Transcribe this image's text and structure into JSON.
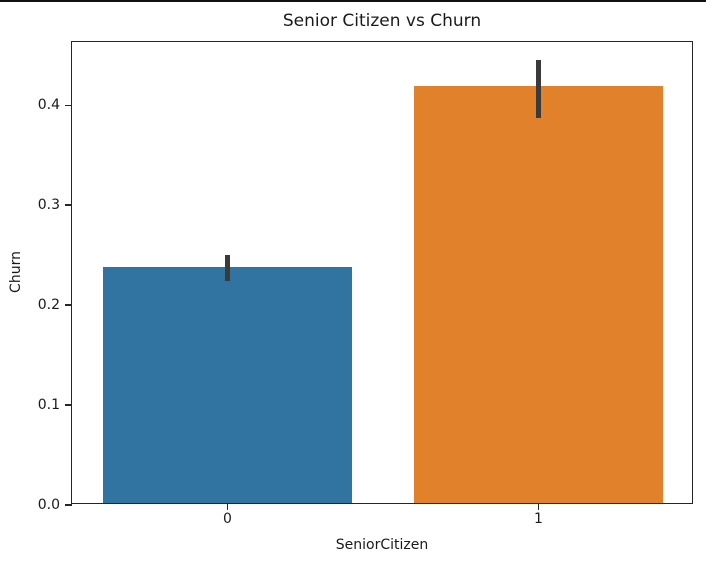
{
  "figure": {
    "background": "#ffffff",
    "top_border_color": "#111111"
  },
  "chart_data": {
    "type": "bar",
    "title": "Senior Citizen vs Churn",
    "xlabel": "SeniorCitizen",
    "ylabel": "Churn",
    "categories": [
      "0",
      "1"
    ],
    "values": [
      0.236,
      0.417
    ],
    "error_bars": [
      {
        "low": 0.224,
        "high": 0.25
      },
      {
        "low": 0.387,
        "high": 0.445
      }
    ],
    "bar_colors": [
      "#3274a1",
      "#e1812c"
    ],
    "errorbar_color": "#3a3a3a",
    "axis_color": "#262626",
    "text_color": "#1a1a1a",
    "ylim": [
      0,
      0.4635
    ],
    "yticks": [
      0.0,
      0.1,
      0.2,
      0.3,
      0.4
    ],
    "ytick_labels": [
      "0.0",
      "0.1",
      "0.2",
      "0.3",
      "0.4"
    ],
    "bar_width_fraction": 0.8,
    "grid": false,
    "legend": null
  }
}
